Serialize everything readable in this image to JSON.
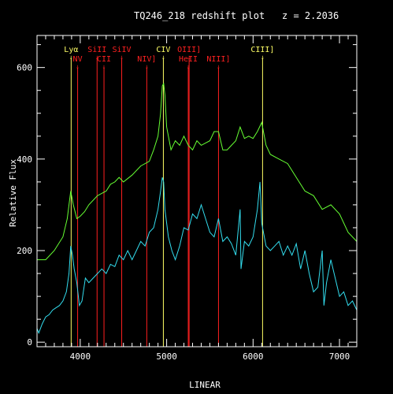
{
  "chart_data": {
    "type": "line",
    "title": "TQ246_218 redshift plot",
    "redshift_label": "z = 2.2036",
    "xlabel": "LINEAR",
    "ylabel": "Relative Flux",
    "xlim": [
      3500,
      7200
    ],
    "ylim": [
      -10,
      670
    ],
    "x_ticks": [
      4000,
      5000,
      6000,
      7000
    ],
    "y_ticks": [
      0,
      200,
      400,
      600
    ],
    "grid": false,
    "colors": {
      "background": "#000000",
      "axes": "#ffffff",
      "text": "#ffffff",
      "model": "#66ff33",
      "data": "#33ddee",
      "line_emission": "#ff2020",
      "line_strong": "#ffff66"
    },
    "lines": [
      {
        "label": "Lyα",
        "x": 3895,
        "row": 1,
        "color": "yellow"
      },
      {
        "label": "NV",
        "x": 3970,
        "row": 2,
        "color": "red"
      },
      {
        "label": "SiII",
        "x": 4195,
        "row": 1,
        "color": "red"
      },
      {
        "label": "CII",
        "x": 4275,
        "row": 2,
        "color": "red"
      },
      {
        "label": "SiIV",
        "x": 4480,
        "row": 1,
        "color": "red"
      },
      {
        "label": "NIV]",
        "x": 4770,
        "row": 2,
        "color": "red"
      },
      {
        "label": "CIV",
        "x": 4962,
        "row": 1,
        "color": "yellow"
      },
      {
        "label": "OIII]",
        "x": 5260,
        "row": 1,
        "color": "red"
      },
      {
        "label": "HeII",
        "x": 5250,
        "row": 2,
        "color": "red"
      },
      {
        "label": "NIII]",
        "x": 5600,
        "row": 2,
        "color": "red"
      },
      {
        "label": "CIII]",
        "x": 6110,
        "row": 1,
        "color": "yellow"
      }
    ],
    "series": [
      {
        "color": "#66ff33",
        "x": [
          3500,
          3600,
          3700,
          3800,
          3850,
          3890,
          3920,
          3960,
          4000,
          4050,
          4100,
          4200,
          4300,
          4350,
          4400,
          4450,
          4500,
          4600,
          4700,
          4800,
          4850,
          4900,
          4930,
          4950,
          4965,
          4980,
          5000,
          5050,
          5100,
          5150,
          5200,
          5250,
          5300,
          5350,
          5400,
          5500,
          5550,
          5600,
          5650,
          5700,
          5750,
          5800,
          5850,
          5900,
          5950,
          6000,
          6050,
          6100,
          6150,
          6200,
          6300,
          6400,
          6500,
          6600,
          6700,
          6800,
          6900,
          7000,
          7100,
          7200
        ],
        "values": [
          180,
          180,
          200,
          230,
          270,
          330,
          300,
          270,
          275,
          285,
          300,
          320,
          330,
          345,
          350,
          360,
          350,
          365,
          385,
          395,
          420,
          450,
          500,
          560,
          565,
          540,
          470,
          420,
          440,
          430,
          450,
          430,
          420,
          440,
          430,
          440,
          460,
          460,
          420,
          420,
          430,
          440,
          470,
          445,
          450,
          445,
          460,
          480,
          430,
          410,
          400,
          390,
          360,
          330,
          320,
          290,
          300,
          280,
          240,
          220
        ]
      },
      {
        "color": "#33ddee",
        "x": [
          3500,
          3520,
          3560,
          3600,
          3640,
          3680,
          3720,
          3760,
          3800,
          3840,
          3870,
          3890,
          3910,
          3930,
          3960,
          3990,
          4020,
          4060,
          4100,
          4150,
          4200,
          4250,
          4300,
          4350,
          4400,
          4450,
          4500,
          4550,
          4600,
          4650,
          4700,
          4750,
          4800,
          4850,
          4900,
          4930,
          4950,
          4965,
          4980,
          5000,
          5020,
          5060,
          5100,
          5150,
          5200,
          5250,
          5300,
          5350,
          5400,
          5450,
          5500,
          5550,
          5600,
          5650,
          5700,
          5750,
          5800,
          5850,
          5860,
          5900,
          5950,
          6000,
          6050,
          6080,
          6100,
          6120,
          6150,
          6200,
          6250,
          6300,
          6350,
          6400,
          6450,
          6500,
          6550,
          6600,
          6650,
          6700,
          6750,
          6800,
          6820,
          6850,
          6900,
          6950,
          7000,
          7050,
          7100,
          7150,
          7200
        ],
        "values": [
          30,
          20,
          40,
          55,
          60,
          70,
          75,
          80,
          90,
          110,
          150,
          210,
          190,
          160,
          130,
          80,
          90,
          140,
          130,
          140,
          150,
          160,
          150,
          170,
          165,
          190,
          180,
          200,
          180,
          200,
          220,
          210,
          240,
          250,
          290,
          330,
          360,
          350,
          290,
          260,
          230,
          200,
          180,
          210,
          250,
          245,
          280,
          270,
          300,
          270,
          240,
          230,
          270,
          220,
          230,
          215,
          190,
          290,
          160,
          220,
          210,
          230,
          290,
          350,
          260,
          240,
          210,
          200,
          210,
          220,
          190,
          210,
          190,
          215,
          160,
          200,
          150,
          110,
          120,
          200,
          80,
          130,
          180,
          140,
          100,
          110,
          80,
          90,
          70
        ]
      }
    ]
  }
}
